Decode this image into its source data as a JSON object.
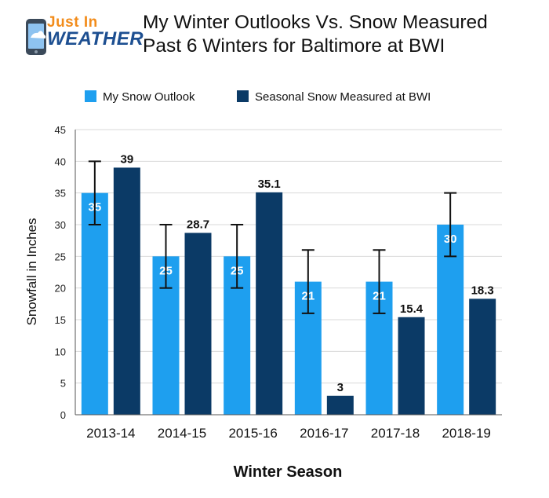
{
  "logo": {
    "line1": "Just In",
    "line2": "WEATHER"
  },
  "header": {
    "title_line1": "My Winter Outlooks Vs. Snow Measured",
    "title_line2": "Past 6 Winters for Baltimore at BWI"
  },
  "colors": {
    "outlook": "#1e9fef",
    "measured": "#0b3a66",
    "grid": "#d9d9d9",
    "axis": "#555555",
    "logo_orange": "#f28c1b",
    "logo_blue": "#1d4f91"
  },
  "chart_data": {
    "type": "bar",
    "title": "My Winter Outlooks Vs. Snow Measured Past 6 Winters for Baltimore at BWI",
    "xlabel": "Winter Season",
    "ylabel": "Snowfall in Inches",
    "ylim": [
      0,
      45
    ],
    "yticks": [
      0,
      5,
      10,
      15,
      20,
      25,
      30,
      35,
      40,
      45
    ],
    "grid": true,
    "legend_position": "top",
    "categories": [
      "2013-14",
      "2014-15",
      "2015-16",
      "2016-17",
      "2017-18",
      "2018-19"
    ],
    "series": [
      {
        "name": "My Snow Outlook",
        "values": [
          35,
          25,
          25,
          21,
          21,
          30
        ],
        "labels": [
          "35",
          "25",
          "25",
          "21",
          "21",
          "30"
        ],
        "error_bars": [
          [
            30,
            40
          ],
          [
            20,
            30
          ],
          [
            20,
            30
          ],
          [
            16,
            26
          ],
          [
            16,
            26
          ],
          [
            25,
            35
          ]
        ]
      },
      {
        "name": "Seasonal Snow Measured at BWI",
        "values": [
          39,
          28.7,
          35.1,
          3,
          15.4,
          18.3
        ],
        "labels": [
          "39",
          "28.7",
          "35.1",
          "3",
          "15.4",
          "18.3"
        ]
      }
    ]
  }
}
